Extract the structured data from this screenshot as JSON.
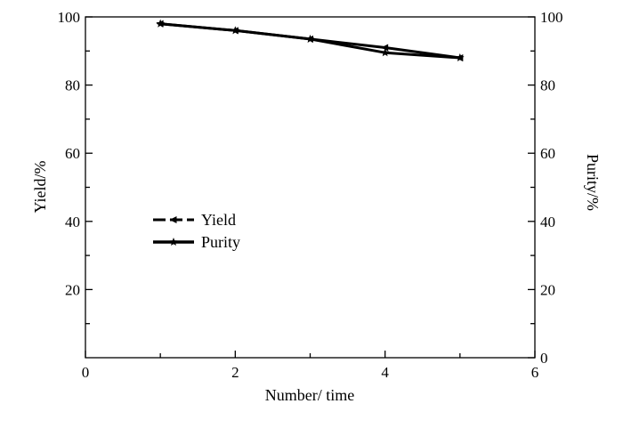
{
  "chart_data": {
    "type": "line",
    "xlabel": "Number/ time",
    "ylabel": "Yield/%",
    "y2label": "Purity/%",
    "xlim": [
      0,
      6
    ],
    "ylim": [
      0,
      100
    ],
    "y2lim": [
      0,
      100
    ],
    "x_ticks": [
      0,
      2,
      4,
      6
    ],
    "y_ticks": [
      20,
      40,
      60,
      80,
      100
    ],
    "y2_ticks": [
      0,
      20,
      40,
      60,
      80,
      100
    ],
    "grid": false,
    "legend_position": "center-left",
    "line_color": "#000000",
    "series": [
      {
        "name": "Yield",
        "marker": "left-triangle",
        "axis": "left",
        "x": [
          1,
          2,
          3,
          4,
          5
        ],
        "y": [
          98,
          96,
          93.5,
          91,
          88
        ]
      },
      {
        "name": "Purity",
        "marker": "star",
        "axis": "right",
        "x": [
          1,
          2,
          3,
          4,
          5
        ],
        "y": [
          98,
          96,
          93.5,
          89.5,
          88
        ]
      }
    ]
  }
}
